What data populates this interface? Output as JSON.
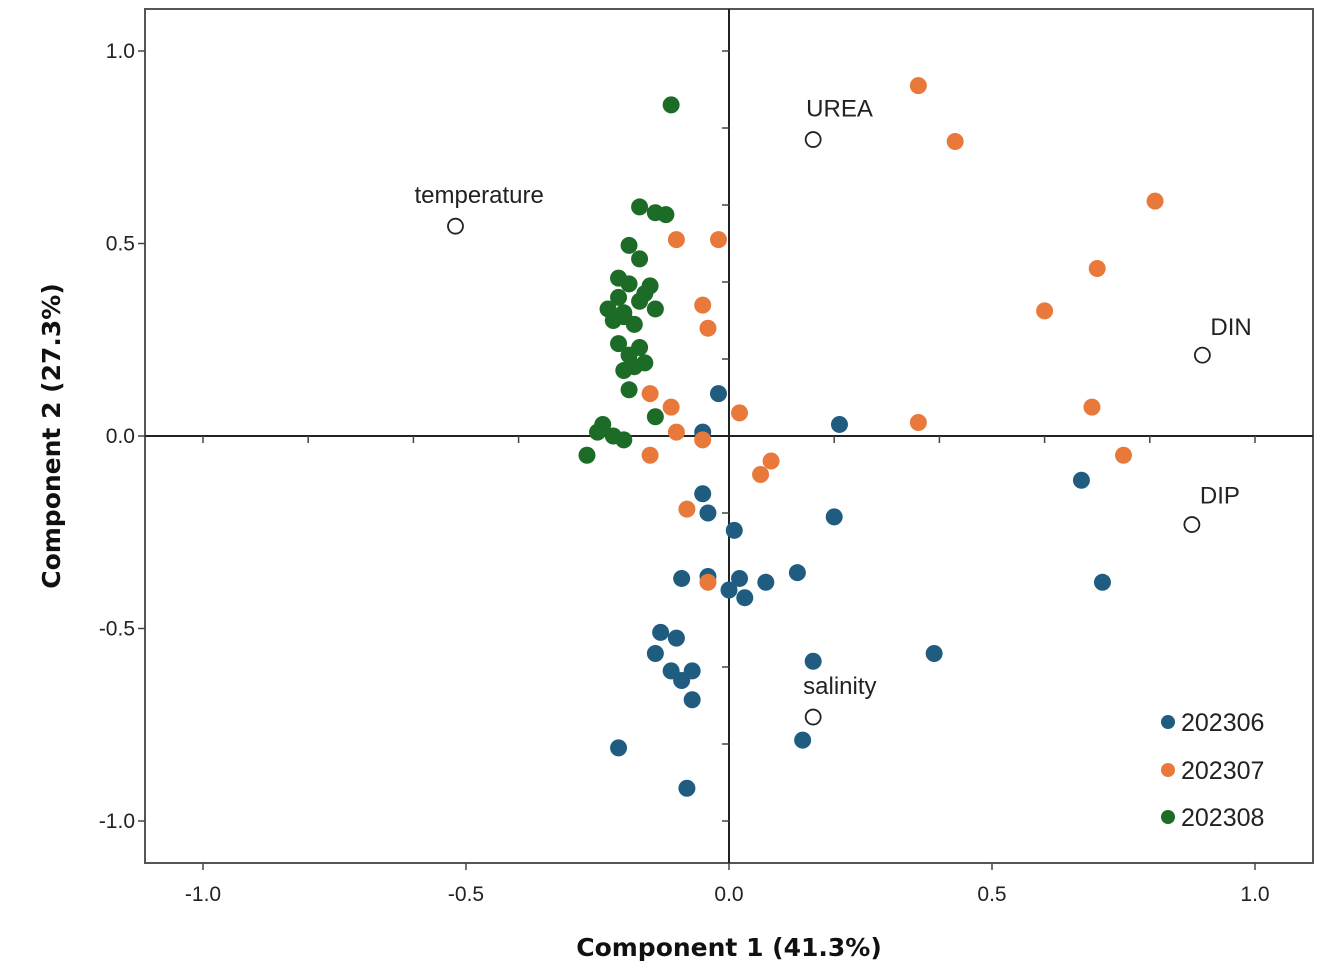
{
  "chart_data": {
    "type": "scatter",
    "xlabel": "Component 1 (41.3%)",
    "ylabel": "Component 2 (27.3%)",
    "xlim": [
      -1.1,
      1.1
    ],
    "ylim": [
      -1.1,
      1.1
    ],
    "xticks": [
      -1.0,
      -0.5,
      0.0,
      0.5,
      1.0
    ],
    "yticks": [
      1.0,
      0.5,
      0.0,
      -0.5,
      -1.0
    ],
    "xtick_labels": [
      "-1.0",
      "-0.5",
      "0.0",
      "0.5",
      "1.0"
    ],
    "ytick_labels": [
      "1.0",
      "0.5",
      "0.0",
      "-0.5",
      "-1.0"
    ],
    "minor_ticks": [
      -1.0,
      -0.8,
      -0.6,
      -0.4,
      -0.2,
      0.2,
      0.4,
      0.6,
      0.8,
      1.0
    ],
    "variables": [
      {
        "name": "UREA",
        "x": 0.16,
        "y": 0.77
      },
      {
        "name": "temperature",
        "x": -0.52,
        "y": 0.545
      },
      {
        "name": "DIN",
        "x": 0.9,
        "y": 0.21
      },
      {
        "name": "DIP",
        "x": 0.88,
        "y": -0.23
      },
      {
        "name": "salinity",
        "x": 0.16,
        "y": -0.73
      }
    ],
    "series": [
      {
        "name": "202306",
        "color": "#1f5c80",
        "points": [
          [
            -0.02,
            0.11
          ],
          [
            -0.05,
            0.01
          ],
          [
            0.21,
            0.03
          ],
          [
            -0.05,
            -0.15
          ],
          [
            -0.04,
            -0.2
          ],
          [
            0.2,
            -0.21
          ],
          [
            0.01,
            -0.245
          ],
          [
            0.67,
            -0.115
          ],
          [
            0.71,
            -0.38
          ],
          [
            -0.09,
            -0.37
          ],
          [
            -0.04,
            -0.365
          ],
          [
            0.13,
            -0.355
          ],
          [
            0.02,
            -0.37
          ],
          [
            0.07,
            -0.38
          ],
          [
            -0.0,
            -0.4
          ],
          [
            0.03,
            -0.42
          ],
          [
            -0.13,
            -0.51
          ],
          [
            -0.1,
            -0.525
          ],
          [
            -0.14,
            -0.565
          ],
          [
            0.39,
            -0.565
          ],
          [
            0.16,
            -0.585
          ],
          [
            -0.11,
            -0.61
          ],
          [
            -0.07,
            -0.61
          ],
          [
            -0.09,
            -0.635
          ],
          [
            -0.07,
            -0.685
          ],
          [
            0.14,
            -0.79
          ],
          [
            -0.21,
            -0.81
          ],
          [
            -0.08,
            -0.915
          ]
        ]
      },
      {
        "name": "202307",
        "color": "#e8793a",
        "points": [
          [
            0.36,
            0.91
          ],
          [
            0.43,
            0.765
          ],
          [
            0.81,
            0.61
          ],
          [
            -0.1,
            0.51
          ],
          [
            -0.02,
            0.51
          ],
          [
            0.7,
            0.435
          ],
          [
            -0.05,
            0.34
          ],
          [
            0.6,
            0.325
          ],
          [
            -0.04,
            0.28
          ],
          [
            -0.15,
            0.11
          ],
          [
            -0.11,
            0.075
          ],
          [
            0.02,
            0.06
          ],
          [
            0.69,
            0.075
          ],
          [
            0.36,
            0.035
          ],
          [
            -0.1,
            0.01
          ],
          [
            -0.05,
            -0.01
          ],
          [
            -0.15,
            -0.05
          ],
          [
            0.75,
            -0.05
          ],
          [
            0.08,
            -0.065
          ],
          [
            0.06,
            -0.1
          ],
          [
            -0.08,
            -0.19
          ],
          [
            -0.04,
            -0.38
          ]
        ]
      },
      {
        "name": "202308",
        "color": "#1c6b27",
        "points": [
          [
            -0.11,
            0.86
          ],
          [
            -0.17,
            0.595
          ],
          [
            -0.14,
            0.58
          ],
          [
            -0.12,
            0.575
          ],
          [
            -0.19,
            0.495
          ],
          [
            -0.17,
            0.46
          ],
          [
            -0.21,
            0.41
          ],
          [
            -0.15,
            0.39
          ],
          [
            -0.19,
            0.395
          ],
          [
            -0.16,
            0.37
          ],
          [
            -0.21,
            0.36
          ],
          [
            -0.17,
            0.35
          ],
          [
            -0.23,
            0.33
          ],
          [
            -0.2,
            0.32
          ],
          [
            -0.14,
            0.33
          ],
          [
            -0.22,
            0.3
          ],
          [
            -0.18,
            0.29
          ],
          [
            -0.2,
            0.31
          ],
          [
            -0.21,
            0.24
          ],
          [
            -0.17,
            0.23
          ],
          [
            -0.19,
            0.21
          ],
          [
            -0.16,
            0.19
          ],
          [
            -0.18,
            0.18
          ],
          [
            -0.2,
            0.17
          ],
          [
            -0.19,
            0.12
          ],
          [
            -0.14,
            0.05
          ],
          [
            -0.24,
            0.03
          ],
          [
            -0.25,
            0.01
          ],
          [
            -0.22,
            0.0
          ],
          [
            -0.2,
            -0.01
          ],
          [
            -0.27,
            -0.05
          ]
        ]
      }
    ],
    "legend": {
      "position": "bottom-right",
      "entries": [
        "202306",
        "202307",
        "202308"
      ]
    }
  }
}
